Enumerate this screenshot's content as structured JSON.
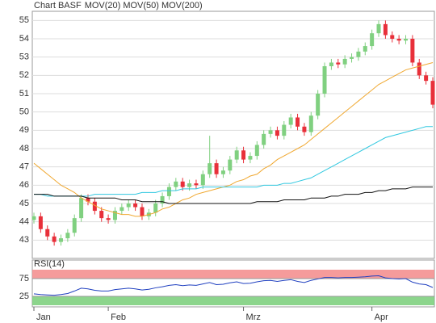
{
  "chart_data": [
    {
      "type": "candlestick",
      "title": "Chart BASF",
      "categories": [
        "Jan",
        null,
        null,
        null,
        null,
        null,
        null,
        null,
        null,
        null,
        null,
        "Feb",
        null,
        null,
        null,
        null,
        null,
        null,
        null,
        null,
        null,
        null,
        null,
        null,
        null,
        null,
        null,
        null,
        null,
        null,
        null,
        "Mrz",
        null,
        null,
        null,
        null,
        null,
        null,
        null,
        null,
        null,
        null,
        null,
        null,
        null,
        null,
        null,
        null,
        null,
        null,
        "Apr",
        null,
        null,
        null,
        null,
        null,
        null,
        null,
        null,
        null
      ],
      "open": [
        44.1,
        44.3,
        43.6,
        43.2,
        42.9,
        43.1,
        43.4,
        44.2,
        45.3,
        45.1,
        44.6,
        44.2,
        44.1,
        44.6,
        44.8,
        45.0,
        44.8,
        44.3,
        44.5,
        45.0,
        45.4,
        45.9,
        46.2,
        45.9,
        46.1,
        46.0,
        46.6,
        47.2,
        46.6,
        46.8,
        47.4,
        47.9,
        47.4,
        47.6,
        48.2,
        48.8,
        49.0,
        48.7,
        49.3,
        49.7,
        49.2,
        48.9,
        49.8,
        51.0,
        52.5,
        52.7,
        52.6,
        52.9,
        53.0,
        53.3,
        53.6,
        54.3,
        54.8,
        54.2,
        54.0,
        53.9,
        54.0,
        52.7,
        52.0,
        51.7
      ],
      "high": [
        44.5,
        44.5,
        43.8,
        43.4,
        43.3,
        43.6,
        44.4,
        45.5,
        45.5,
        45.3,
        44.8,
        44.4,
        44.8,
        45.0,
        45.2,
        45.2,
        45.0,
        44.7,
        45.2,
        45.6,
        46.1,
        46.4,
        46.4,
        46.3,
        46.3,
        46.8,
        48.7,
        47.4,
        47.0,
        47.6,
        48.1,
        48.1,
        47.8,
        48.4,
        49.0,
        49.2,
        49.2,
        49.5,
        49.9,
        49.9,
        49.4,
        50.0,
        51.2,
        52.7,
        52.9,
        52.9,
        53.1,
        53.2,
        53.5,
        53.8,
        54.5,
        55.0,
        55.0,
        54.4,
        54.2,
        54.2,
        54.2,
        52.9,
        52.2,
        51.9
      ],
      "low": [
        43.9,
        43.4,
        43.0,
        42.7,
        42.7,
        42.9,
        43.2,
        44.0,
        44.9,
        44.4,
        44.0,
        43.9,
        43.9,
        44.4,
        44.6,
        44.6,
        44.1,
        44.1,
        44.3,
        44.8,
        45.2,
        45.7,
        45.7,
        45.7,
        45.8,
        45.8,
        46.4,
        46.4,
        46.4,
        46.6,
        47.2,
        47.2,
        47.2,
        47.4,
        48.0,
        48.6,
        48.5,
        48.5,
        49.1,
        49.0,
        48.7,
        48.7,
        49.6,
        50.8,
        52.3,
        52.4,
        52.4,
        52.7,
        52.8,
        53.1,
        53.4,
        54.1,
        54.0,
        53.8,
        53.7,
        53.7,
        52.5,
        51.8,
        51.5,
        50.2
      ],
      "close": [
        44.3,
        43.6,
        43.2,
        42.9,
        43.1,
        43.4,
        44.2,
        45.3,
        45.1,
        44.6,
        44.2,
        44.1,
        44.6,
        44.8,
        45.0,
        44.8,
        44.3,
        44.5,
        45.0,
        45.4,
        45.9,
        46.2,
        45.9,
        46.1,
        46.0,
        46.6,
        47.2,
        46.6,
        46.8,
        47.4,
        47.9,
        47.4,
        47.6,
        48.2,
        48.8,
        49.0,
        48.7,
        49.3,
        49.7,
        49.2,
        48.9,
        49.8,
        51.0,
        52.5,
        52.7,
        52.6,
        52.9,
        53.0,
        53.3,
        53.6,
        54.3,
        54.8,
        54.2,
        54.0,
        53.9,
        54.0,
        52.7,
        52.0,
        51.7,
        50.4
      ],
      "up_color": "#80d080",
      "down_color": "#e8303a",
      "series": [
        {
          "name": "MOV(20)",
          "color": "#f0a830",
          "values": [
            47.2,
            46.9,
            46.6,
            46.3,
            46.0,
            45.8,
            45.6,
            45.3,
            45.1,
            44.9,
            44.7,
            44.6,
            44.5,
            44.4,
            44.4,
            44.3,
            44.3,
            44.4,
            44.5,
            44.7,
            44.8,
            45.0,
            45.2,
            45.3,
            45.5,
            45.6,
            45.7,
            45.8,
            45.9,
            46.0,
            46.2,
            46.3,
            46.5,
            46.6,
            46.9,
            47.1,
            47.4,
            47.6,
            47.8,
            48.0,
            48.2,
            48.5,
            48.8,
            49.1,
            49.4,
            49.7,
            50.0,
            50.3,
            50.6,
            50.9,
            51.2,
            51.5,
            51.7,
            51.9,
            52.1,
            52.3,
            52.4,
            52.5,
            52.6,
            52.7
          ]
        },
        {
          "name": "MOV(50)",
          "color": "#30c8e0",
          "values": [
            45.5,
            45.5,
            45.4,
            45.4,
            45.4,
            45.4,
            45.4,
            45.4,
            45.4,
            45.5,
            45.5,
            45.5,
            45.5,
            45.5,
            45.5,
            45.5,
            45.6,
            45.6,
            45.6,
            45.7,
            45.7,
            45.7,
            45.8,
            45.8,
            45.8,
            45.9,
            45.9,
            45.9,
            45.9,
            45.9,
            45.9,
            45.9,
            45.9,
            45.9,
            46.0,
            46.0,
            46.0,
            46.1,
            46.1,
            46.2,
            46.3,
            46.4,
            46.6,
            46.8,
            47.0,
            47.2,
            47.4,
            47.6,
            47.8,
            48.0,
            48.2,
            48.4,
            48.6,
            48.7,
            48.8,
            48.9,
            49.0,
            49.1,
            49.2,
            49.2
          ]
        },
        {
          "name": "MOV(200)",
          "color": "#111111",
          "values": [
            45.5,
            45.5,
            45.5,
            45.4,
            45.4,
            45.4,
            45.4,
            45.4,
            45.3,
            45.3,
            45.3,
            45.3,
            45.3,
            45.2,
            45.2,
            45.2,
            45.1,
            45.1,
            45.1,
            45.1,
            45.0,
            45.0,
            45.0,
            45.0,
            45.0,
            45.0,
            45.0,
            45.0,
            45.0,
            45.0,
            45.0,
            45.0,
            45.0,
            45.1,
            45.1,
            45.1,
            45.1,
            45.2,
            45.2,
            45.2,
            45.2,
            45.3,
            45.3,
            45.3,
            45.4,
            45.4,
            45.5,
            45.5,
            45.5,
            45.6,
            45.6,
            45.7,
            45.7,
            45.8,
            45.8,
            45.8,
            45.9,
            45.9,
            45.9,
            45.9
          ]
        }
      ],
      "ylim": [
        42,
        55.5
      ],
      "yticks": [
        43,
        44,
        45,
        46,
        47,
        48,
        49,
        50,
        51,
        52,
        53,
        54,
        55
      ],
      "grid": true
    },
    {
      "type": "line",
      "title": "RSI(14)",
      "color": "#2040c0",
      "values": [
        32,
        30,
        29,
        28,
        30,
        33,
        40,
        48,
        46,
        42,
        40,
        40,
        44,
        46,
        48,
        46,
        43,
        45,
        49,
        52,
        56,
        58,
        55,
        57,
        56,
        60,
        64,
        58,
        59,
        63,
        66,
        61,
        62,
        66,
        69,
        70,
        67,
        70,
        72,
        67,
        64,
        70,
        74,
        78,
        78,
        77,
        78,
        78,
        79,
        80,
        82,
        83,
        77,
        75,
        74,
        75,
        65,
        60,
        58,
        50
      ],
      "ylim": [
        0,
        100
      ],
      "yticks": [
        25,
        75
      ],
      "bands": [
        {
          "from": 75,
          "to": 100,
          "color": "#f49090"
        },
        {
          "from": 0,
          "to": 25,
          "color": "#80d080"
        }
      ]
    }
  ]
}
